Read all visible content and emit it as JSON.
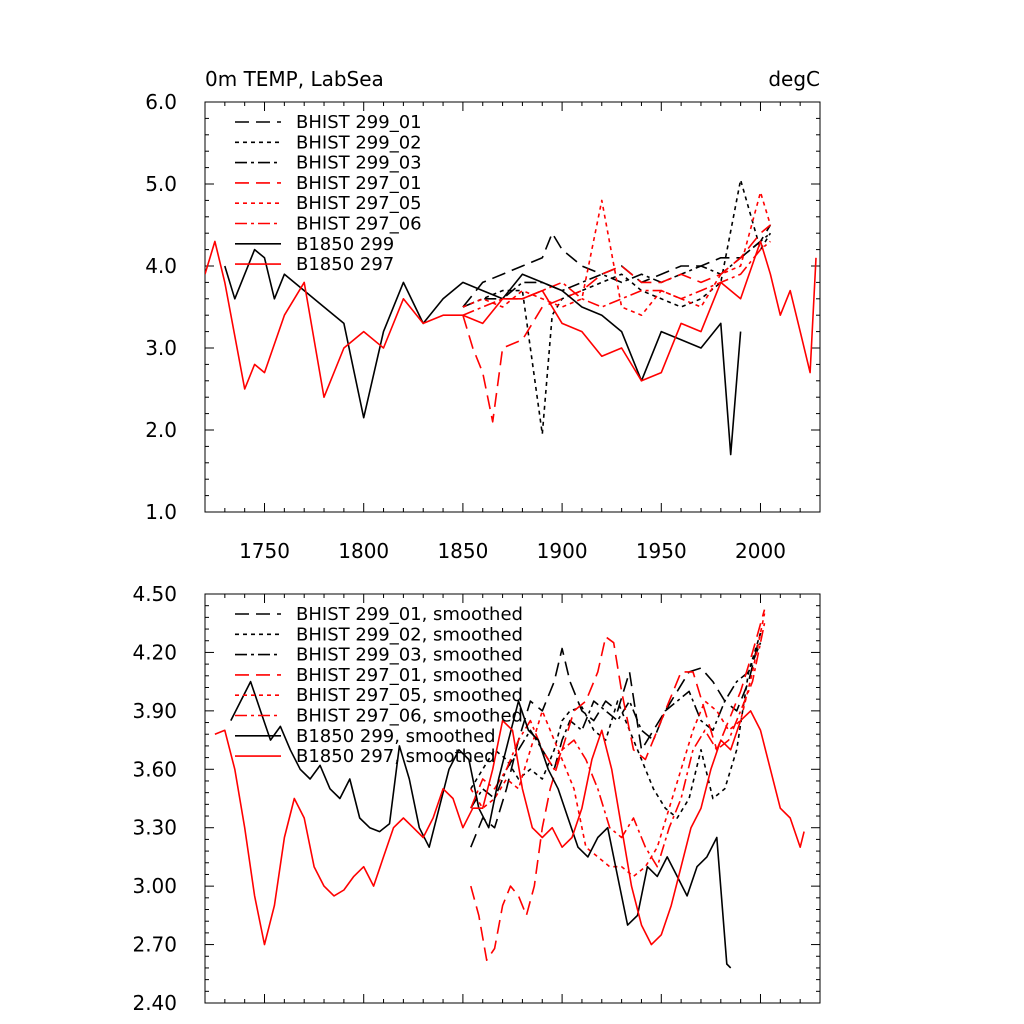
{
  "chart_data": [
    {
      "type": "line",
      "title_left": "0m TEMP, LabSea",
      "title_right": "degC",
      "xlim": [
        1720,
        2030
      ],
      "ylim": [
        1.0,
        6.0
      ],
      "x_ticks": [
        1750,
        1800,
        1850,
        1900,
        1950,
        2000
      ],
      "x_tick_labels": [
        "1750",
        "1800",
        "1850",
        "1900",
        "1950",
        "2000"
      ],
      "y_ticks": [
        1.0,
        2.0,
        3.0,
        4.0,
        5.0,
        6.0
      ],
      "y_tick_labels": [
        "1.0",
        "2.0",
        "3.0",
        "4.0",
        "5.0",
        "6.0"
      ],
      "grid": false,
      "legend_position": "top-left",
      "series": [
        {
          "name": "BHIST 299_01",
          "color": "#000000",
          "dash": "long-dash",
          "x": [
            1850,
            1860,
            1870,
            1880,
            1890,
            1895,
            1900,
            1910,
            1920,
            1930,
            1940,
            1950,
            1960,
            1970,
            1980,
            1990,
            2000,
            2005
          ],
          "y": [
            3.5,
            3.8,
            3.9,
            4.0,
            4.1,
            4.4,
            4.2,
            4.0,
            3.9,
            4.0,
            3.8,
            3.9,
            4.0,
            4.0,
            4.1,
            4.1,
            4.3,
            4.5
          ]
        },
        {
          "name": "BHIST 299_02",
          "color": "#000000",
          "dash": "short-dash",
          "x": [
            1850,
            1860,
            1870,
            1880,
            1890,
            1895,
            1900,
            1910,
            1920,
            1930,
            1940,
            1950,
            1960,
            1970,
            1980,
            1990,
            2000,
            2005
          ],
          "y": [
            3.5,
            3.6,
            3.7,
            3.7,
            1.95,
            3.4,
            3.6,
            3.7,
            3.8,
            3.9,
            3.7,
            3.6,
            3.5,
            3.6,
            3.8,
            5.05,
            4.2,
            4.4
          ]
        },
        {
          "name": "BHIST 299_03",
          "color": "#000000",
          "dash": "dash-dot",
          "x": [
            1850,
            1860,
            1870,
            1880,
            1890,
            1900,
            1910,
            1920,
            1930,
            1940,
            1950,
            1960,
            1970,
            1980,
            1990,
            2000,
            2005
          ],
          "y": [
            3.5,
            3.6,
            3.6,
            3.8,
            3.8,
            3.7,
            3.8,
            3.9,
            3.8,
            3.9,
            3.8,
            3.9,
            4.0,
            3.9,
            4.1,
            4.3,
            4.4
          ]
        },
        {
          "name": "BHIST 297_01",
          "color": "#ff0000",
          "dash": "long-dash",
          "x": [
            1850,
            1855,
            1860,
            1865,
            1870,
            1880,
            1890,
            1900,
            1910,
            1920,
            1930,
            1940,
            1950,
            1960,
            1970,
            1980,
            1990,
            2000,
            2005
          ],
          "y": [
            3.4,
            3.0,
            2.7,
            2.1,
            3.0,
            3.1,
            3.5,
            3.6,
            3.7,
            3.9,
            4.0,
            3.8,
            3.8,
            3.9,
            3.8,
            3.9,
            4.1,
            4.4,
            4.5
          ]
        },
        {
          "name": "BHIST 297_05",
          "color": "#ff0000",
          "dash": "short-dash",
          "x": [
            1850,
            1860,
            1870,
            1880,
            1890,
            1900,
            1910,
            1920,
            1930,
            1940,
            1950,
            1960,
            1970,
            1980,
            1990,
            2000,
            2005
          ],
          "y": [
            3.5,
            3.6,
            3.5,
            3.7,
            3.6,
            3.5,
            3.6,
            4.8,
            3.5,
            3.4,
            3.7,
            3.6,
            3.5,
            3.9,
            4.0,
            4.9,
            4.5
          ]
        },
        {
          "name": "BHIST 297_06",
          "color": "#ff0000",
          "dash": "dash-dot",
          "x": [
            1850,
            1860,
            1870,
            1880,
            1890,
            1900,
            1910,
            1920,
            1930,
            1940,
            1950,
            1960,
            1970,
            1980,
            1990,
            2000,
            2005
          ],
          "y": [
            3.4,
            3.5,
            3.6,
            3.6,
            3.7,
            3.8,
            3.6,
            3.5,
            3.6,
            3.7,
            3.7,
            3.6,
            3.7,
            3.8,
            3.9,
            4.2,
            4.3
          ]
        },
        {
          "name": "B1850 299",
          "color": "#000000",
          "dash": "solid",
          "x": [
            1730,
            1735,
            1740,
            1745,
            1750,
            1755,
            1760,
            1770,
            1780,
            1790,
            1800,
            1810,
            1820,
            1830,
            1840,
            1850,
            1860,
            1870,
            1880,
            1890,
            1900,
            1910,
            1920,
            1930,
            1940,
            1950,
            1960,
            1970,
            1980,
            1985,
            1990
          ],
          "y": [
            4.0,
            3.6,
            3.9,
            4.2,
            4.1,
            3.6,
            3.9,
            3.7,
            3.5,
            3.3,
            2.15,
            3.2,
            3.8,
            3.3,
            3.6,
            3.8,
            3.7,
            3.6,
            3.9,
            3.8,
            3.7,
            3.5,
            3.4,
            3.2,
            2.6,
            3.2,
            3.1,
            3.0,
            3.3,
            1.7,
            3.2
          ]
        },
        {
          "name": "B1850 297",
          "color": "#ff0000",
          "dash": "solid",
          "x": [
            1720,
            1725,
            1730,
            1740,
            1745,
            1750,
            1760,
            1770,
            1780,
            1790,
            1800,
            1810,
            1820,
            1830,
            1840,
            1850,
            1860,
            1870,
            1880,
            1890,
            1900,
            1910,
            1920,
            1930,
            1940,
            1950,
            1960,
            1970,
            1980,
            1990,
            2000,
            2005,
            2010,
            2015,
            2020,
            2025,
            2028
          ],
          "y": [
            3.9,
            4.3,
            3.8,
            2.5,
            2.8,
            2.7,
            3.4,
            3.8,
            2.4,
            3.0,
            3.2,
            3.0,
            3.6,
            3.3,
            3.4,
            3.4,
            3.3,
            3.6,
            3.6,
            3.7,
            3.3,
            3.2,
            2.9,
            3.0,
            2.6,
            2.7,
            3.3,
            3.2,
            3.8,
            3.6,
            4.3,
            3.9,
            3.4,
            3.7,
            3.2,
            2.7,
            4.1
          ]
        }
      ]
    },
    {
      "type": "line",
      "xlim": [
        1720,
        2030
      ],
      "ylim": [
        2.4,
        4.5
      ],
      "x_ticks": [
        1750,
        1800,
        1850,
        1900,
        1950,
        2000
      ],
      "y_ticks": [
        2.4,
        2.7,
        3.0,
        3.3,
        3.6,
        3.9,
        4.2,
        4.5
      ],
      "y_tick_labels": [
        "2.40",
        "2.70",
        "3.00",
        "3.30",
        "3.60",
        "3.90",
        "4.20",
        "4.50"
      ],
      "grid": false,
      "legend_position": "top-left",
      "series": [
        {
          "name": "BHIST 299_01, smoothed",
          "color": "#000000",
          "dash": "long-dash",
          "x": [
            1854,
            1860,
            1866,
            1872,
            1878,
            1884,
            1890,
            1896,
            1900,
            1904,
            1910,
            1916,
            1922,
            1928,
            1934,
            1940,
            1946,
            1952,
            1958,
            1964,
            1970,
            1976,
            1982,
            1988,
            1994,
            2000
          ],
          "y": [
            3.2,
            3.35,
            3.3,
            3.5,
            3.75,
            3.95,
            3.9,
            4.05,
            4.22,
            4.05,
            3.9,
            3.85,
            3.95,
            3.9,
            4.1,
            3.7,
            3.8,
            3.9,
            4.0,
            4.1,
            4.12,
            4.05,
            3.95,
            3.9,
            4.05,
            4.3
          ]
        },
        {
          "name": "BHIST 299_02, smoothed",
          "color": "#000000",
          "dash": "short-dash",
          "x": [
            1854,
            1860,
            1866,
            1872,
            1878,
            1884,
            1890,
            1896,
            1900,
            1904,
            1910,
            1916,
            1922,
            1928,
            1934,
            1940,
            1946,
            1952,
            1958,
            1964,
            1970,
            1976,
            1982,
            1988,
            1994,
            2000
          ],
          "y": [
            3.5,
            3.6,
            3.7,
            3.65,
            3.55,
            3.6,
            3.55,
            3.7,
            3.85,
            3.9,
            3.92,
            3.8,
            3.75,
            3.95,
            3.8,
            3.65,
            3.5,
            3.4,
            3.35,
            3.45,
            3.7,
            3.45,
            3.5,
            3.7,
            4.1,
            4.3
          ]
        },
        {
          "name": "BHIST 299_03, smoothed",
          "color": "#000000",
          "dash": "dash-dot",
          "x": [
            1854,
            1860,
            1866,
            1872,
            1878,
            1884,
            1890,
            1896,
            1900,
            1904,
            1910,
            1916,
            1922,
            1928,
            1934,
            1940,
            1946,
            1952,
            1958,
            1964,
            1970,
            1976,
            1982,
            1988,
            1994,
            2000
          ],
          "y": [
            3.4,
            3.5,
            3.45,
            3.6,
            3.7,
            3.8,
            3.7,
            3.6,
            3.75,
            3.85,
            3.8,
            3.95,
            3.9,
            3.85,
            3.95,
            3.8,
            3.75,
            3.9,
            3.95,
            4.0,
            3.85,
            3.8,
            3.95,
            4.05,
            4.1,
            4.25
          ]
        },
        {
          "name": "BHIST 297_01, smoothed",
          "color": "#ff0000",
          "dash": "long-dash",
          "x": [
            1854,
            1858,
            1862,
            1866,
            1870,
            1874,
            1878,
            1882,
            1886,
            1890,
            1894,
            1900,
            1906,
            1912,
            1918,
            1922,
            1926,
            1930,
            1936,
            1942,
            1948,
            1954,
            1960,
            1966,
            1972,
            1978,
            1984,
            1990,
            1996,
            2002
          ],
          "y": [
            3.0,
            2.85,
            2.62,
            2.68,
            2.9,
            3.0,
            2.95,
            2.85,
            3.0,
            3.3,
            3.5,
            3.7,
            3.9,
            3.95,
            4.1,
            4.28,
            4.25,
            4.0,
            3.7,
            3.65,
            3.8,
            3.95,
            4.1,
            4.1,
            3.9,
            3.7,
            3.85,
            4.0,
            4.2,
            4.42
          ]
        },
        {
          "name": "BHIST 297_05, smoothed",
          "color": "#ff0000",
          "dash": "short-dash",
          "x": [
            1854,
            1860,
            1866,
            1872,
            1878,
            1884,
            1890,
            1896,
            1900,
            1906,
            1912,
            1918,
            1924,
            1930,
            1936,
            1942,
            1948,
            1954,
            1960,
            1966,
            1972,
            1978,
            1984,
            1990,
            1996,
            2002
          ],
          "y": [
            3.5,
            3.4,
            3.45,
            3.55,
            3.5,
            3.7,
            3.9,
            3.75,
            3.65,
            3.5,
            3.2,
            3.15,
            3.1,
            3.1,
            3.05,
            3.1,
            3.2,
            3.4,
            3.6,
            3.8,
            3.95,
            3.9,
            3.8,
            3.85,
            4.1,
            4.4
          ]
        },
        {
          "name": "BHIST 297_06, smoothed",
          "color": "#ff0000",
          "dash": "dash-dot",
          "x": [
            1854,
            1860,
            1866,
            1872,
            1878,
            1884,
            1890,
            1896,
            1900,
            1906,
            1912,
            1918,
            1924,
            1930,
            1936,
            1942,
            1948,
            1954,
            1960,
            1966,
            1972,
            1978,
            1984,
            1990,
            1996,
            2002
          ],
          "y": [
            3.4,
            3.55,
            3.5,
            3.6,
            3.75,
            3.85,
            3.7,
            3.6,
            3.7,
            3.75,
            3.65,
            3.5,
            3.3,
            3.25,
            3.35,
            3.2,
            3.1,
            3.3,
            3.45,
            3.7,
            3.8,
            3.7,
            3.75,
            3.9,
            4.05,
            4.35
          ]
        },
        {
          "name": "B1850 299, smoothed",
          "color": "#000000",
          "dash": "solid",
          "x": [
            1733,
            1738,
            1743,
            1748,
            1753,
            1758,
            1763,
            1768,
            1773,
            1778,
            1783,
            1788,
            1793,
            1798,
            1803,
            1808,
            1813,
            1818,
            1823,
            1828,
            1833,
            1838,
            1843,
            1848,
            1853,
            1858,
            1863,
            1868,
            1873,
            1878,
            1883,
            1888,
            1893,
            1898,
            1903,
            1908,
            1913,
            1918,
            1923,
            1928,
            1933,
            1938,
            1943,
            1948,
            1953,
            1958,
            1963,
            1968,
            1973,
            1978,
            1983,
            1985
          ],
          "y": [
            3.85,
            3.95,
            4.05,
            3.9,
            3.75,
            3.82,
            3.7,
            3.6,
            3.55,
            3.62,
            3.5,
            3.45,
            3.55,
            3.35,
            3.3,
            3.28,
            3.32,
            3.72,
            3.55,
            3.3,
            3.2,
            3.4,
            3.6,
            3.7,
            3.65,
            3.4,
            3.3,
            3.55,
            3.75,
            3.95,
            3.8,
            3.75,
            3.6,
            3.5,
            3.35,
            3.2,
            3.15,
            3.25,
            3.3,
            3.05,
            2.8,
            2.85,
            3.1,
            3.05,
            3.15,
            3.05,
            2.95,
            3.1,
            3.15,
            3.25,
            2.6,
            2.58
          ]
        },
        {
          "name": "B1850 297, smoothed",
          "color": "#ff0000",
          "dash": "solid",
          "x": [
            1725,
            1730,
            1735,
            1740,
            1745,
            1750,
            1755,
            1760,
            1765,
            1770,
            1775,
            1780,
            1785,
            1790,
            1795,
            1800,
            1805,
            1810,
            1815,
            1820,
            1825,
            1830,
            1835,
            1840,
            1845,
            1850,
            1855,
            1860,
            1865,
            1870,
            1875,
            1880,
            1885,
            1890,
            1895,
            1900,
            1905,
            1910,
            1915,
            1920,
            1925,
            1930,
            1935,
            1940,
            1945,
            1950,
            1955,
            1960,
            1965,
            1970,
            1975,
            1980,
            1985,
            1990,
            1995,
            2000,
            2005,
            2010,
            2015,
            2020,
            2022
          ],
          "y": [
            3.78,
            3.8,
            3.6,
            3.3,
            2.95,
            2.7,
            2.9,
            3.25,
            3.45,
            3.35,
            3.1,
            3.0,
            2.95,
            2.98,
            3.05,
            3.1,
            3.0,
            3.15,
            3.3,
            3.35,
            3.3,
            3.25,
            3.35,
            3.5,
            3.45,
            3.3,
            3.4,
            3.4,
            3.6,
            3.85,
            3.8,
            3.5,
            3.3,
            3.25,
            3.3,
            3.2,
            3.25,
            3.4,
            3.65,
            3.8,
            3.6,
            3.3,
            3.0,
            2.8,
            2.7,
            2.75,
            2.9,
            3.1,
            3.3,
            3.4,
            3.6,
            3.75,
            3.7,
            3.85,
            3.9,
            3.8,
            3.6,
            3.4,
            3.35,
            3.2,
            3.28
          ]
        }
      ]
    }
  ]
}
